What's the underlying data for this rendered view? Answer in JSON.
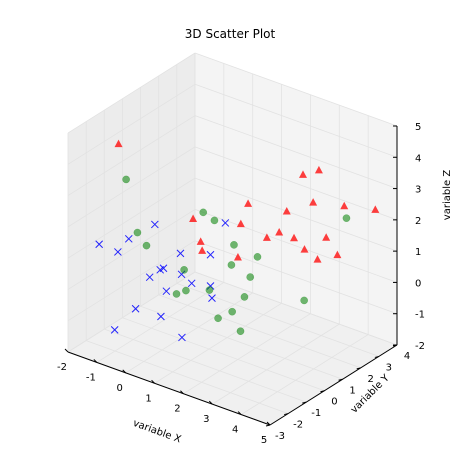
{
  "chart_data": {
    "type": "scatter",
    "title": "3D Scatter Plot",
    "xlabel": "variable X",
    "ylabel": "variable Y",
    "zlabel": "variable Z",
    "xlim": [
      -2,
      5
    ],
    "ylim": [
      -3,
      4
    ],
    "zlim": [
      -2,
      5
    ],
    "grid": true,
    "x_ticks": [
      "-2",
      "-1",
      "0",
      "1",
      "2",
      "3",
      "4",
      "5"
    ],
    "y_ticks": [
      "-3",
      "-2",
      "-1",
      "0",
      "1",
      "2",
      "3",
      "4"
    ],
    "z_ticks": [
      "-2",
      "-1",
      "0",
      "1",
      "2",
      "3",
      "4",
      "5"
    ],
    "series": [
      {
        "marker": "x",
        "color": "#0000ff",
        "points": [
          [
            -1.8,
            -1.6,
            1.0
          ],
          [
            -0.9,
            -2.0,
            1.2
          ],
          [
            -0.9,
            -1.4,
            1.4
          ],
          [
            -0.5,
            -0.6,
            1.7
          ],
          [
            -0.6,
            -1.5,
            -0.7
          ],
          [
            -0.3,
            -1.2,
            0.3
          ],
          [
            0.0,
            -1.1,
            0.6
          ],
          [
            0.3,
            -0.4,
            0.3
          ],
          [
            0.2,
            -0.3,
            0.9
          ],
          [
            -0.1,
            -0.6,
            -0.3
          ],
          [
            0.8,
            0.4,
            0.8
          ],
          [
            1.0,
            0.9,
            1.7
          ],
          [
            0.4,
            0.0,
            -0.1
          ],
          [
            0.8,
            0.4,
            -0.2
          ],
          [
            0.6,
            0.8,
            -0.8
          ],
          [
            -0.1,
            -0.9,
            -1.0
          ],
          [
            0.0,
            0.1,
            -2.0
          ],
          [
            -1.2,
            -1.7,
            -1.5
          ],
          [
            -0.2,
            -0.6,
            0.4
          ]
        ]
      },
      {
        "marker": "o",
        "color": "#008000",
        "points": [
          [
            -0.3,
            -2.5,
            3.9
          ],
          [
            -0.6,
            -1.4,
            1.7
          ],
          [
            0.8,
            0.0,
            2.3
          ],
          [
            1.0,
            0.3,
            2.0
          ],
          [
            0.2,
            -0.1,
            0.3
          ],
          [
            1.8,
            1.4,
            0.7
          ],
          [
            1.4,
            0.6,
            0.6
          ],
          [
            1.8,
            1.0,
            0.2
          ],
          [
            0.2,
            0.0,
            -0.4
          ],
          [
            0.7,
            0.5,
            -0.4
          ],
          [
            1.6,
            1.0,
            -0.5
          ],
          [
            1.3,
            0.8,
            -1.0
          ],
          [
            1.0,
            0.5,
            -1.2
          ],
          [
            2.6,
            2.7,
            -0.9
          ],
          [
            1.4,
            1.1,
            -1.7
          ],
          [
            3.5,
            3.6,
            1.7
          ],
          [
            -0.6,
            -0.9,
            1.1
          ],
          [
            1.3,
            0.9,
            1.1
          ],
          [
            0.0,
            -0.2,
            -0.5
          ]
        ]
      },
      {
        "marker": "^",
        "color": "#ff0000",
        "points": [
          [
            -0.5,
            -2.6,
            5.0
          ],
          [
            3.0,
            2.0,
            3.5
          ],
          [
            3.3,
            2.4,
            3.6
          ],
          [
            0.7,
            -0.4,
            2.2
          ],
          [
            2.5,
            1.9,
            2.2
          ],
          [
            3.1,
            2.4,
            2.5
          ],
          [
            3.8,
            3.0,
            2.4
          ],
          [
            4.5,
            3.6,
            2.3
          ],
          [
            1.6,
            0.8,
            1.9
          ],
          [
            2.3,
            1.8,
            1.5
          ],
          [
            2.5,
            2.3,
            1.2
          ],
          [
            2.8,
            2.4,
            0.9
          ],
          [
            3.3,
            2.8,
            1.3
          ],
          [
            3.0,
            2.8,
            0.5
          ],
          [
            3.5,
            3.1,
            0.7
          ],
          [
            0.9,
            -0.3,
            1.5
          ],
          [
            1.5,
            0.8,
            0.8
          ],
          [
            0.7,
            0.1,
            1.0
          ],
          [
            1.6,
            1.2,
            2.4
          ],
          [
            2.0,
            1.6,
            1.3
          ]
        ]
      }
    ]
  }
}
